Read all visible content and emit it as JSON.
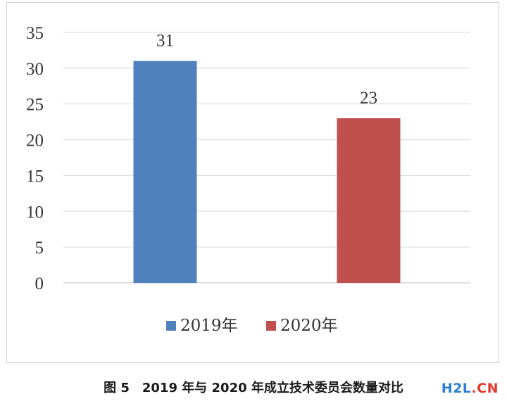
{
  "chart_data": {
    "type": "bar",
    "categories": [
      "2019年",
      "2020年"
    ],
    "values": [
      31,
      23
    ],
    "data_labels": [
      "31",
      "23"
    ],
    "colors": [
      "#4f81bd",
      "#c0504d"
    ],
    "ylim": [
      0,
      35
    ],
    "yticks": [
      0,
      5,
      10,
      15,
      20,
      25,
      30,
      35
    ],
    "ytick_labels": [
      "0",
      "5",
      "10",
      "15",
      "20",
      "25",
      "30",
      "35"
    ],
    "grid": true,
    "legend_position": "bottom",
    "legend": [
      "2019年",
      "2020年"
    ]
  },
  "caption": "图 5　2019 年与 2020 年成立技术委员会数量对比",
  "watermark": {
    "part1": "H2L",
    "part2": ".CN"
  }
}
